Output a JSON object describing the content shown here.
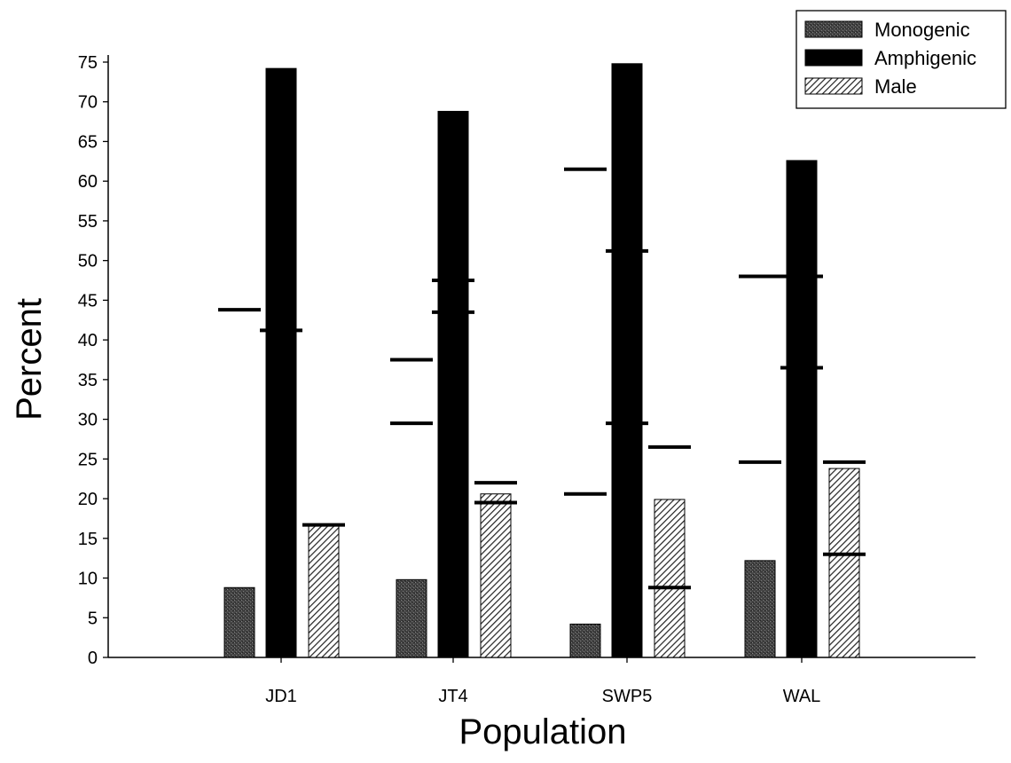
{
  "chart_data": {
    "type": "bar",
    "xlabel": "Population",
    "ylabel": "Percent",
    "categories": [
      "JD1",
      "JT4",
      "SWP5",
      "WAL"
    ],
    "ylim": [
      0,
      76
    ],
    "yticks": [
      0,
      5,
      10,
      15,
      20,
      25,
      30,
      35,
      40,
      45,
      50,
      55,
      60,
      65,
      70,
      75
    ],
    "grid": false,
    "legend_position": "top-right",
    "series": [
      {
        "name": "Monogenic",
        "pattern": "stipple",
        "color": "#3a3a3a",
        "values": [
          8.8,
          9.8,
          4.2,
          12.2
        ]
      },
      {
        "name": "Amphigenic",
        "pattern": "solid",
        "color": "#000000",
        "values": [
          74.2,
          68.8,
          74.8,
          62.6
        ]
      },
      {
        "name": "Male",
        "pattern": "hatch",
        "color": "#555555",
        "values": [
          16.7,
          20.6,
          19.9,
          23.8
        ]
      }
    ],
    "range_markers": [
      {
        "category": "JD1",
        "series": "Monogenic",
        "values": [
          43.8
        ]
      },
      {
        "category": "JD1",
        "series": "Amphigenic",
        "values": [
          41.2
        ]
      },
      {
        "category": "JD1",
        "series": "Male",
        "values": [
          16.7
        ]
      },
      {
        "category": "JT4",
        "series": "Monogenic",
        "values": [
          37.5,
          29.5
        ]
      },
      {
        "category": "JT4",
        "series": "Amphigenic",
        "values": [
          47.5,
          43.5
        ]
      },
      {
        "category": "JT4",
        "series": "Male",
        "values": [
          22.0,
          19.5
        ]
      },
      {
        "category": "SWP5",
        "series": "Monogenic",
        "values": [
          61.5,
          20.6
        ]
      },
      {
        "category": "SWP5",
        "series": "Amphigenic",
        "values": [
          51.2,
          29.5
        ]
      },
      {
        "category": "SWP5",
        "series": "Male",
        "values": [
          26.5,
          8.8
        ]
      },
      {
        "category": "WAL",
        "series": "Monogenic",
        "values": [
          48.0,
          24.6
        ]
      },
      {
        "category": "WAL",
        "series": "Amphigenic",
        "values": [
          48.0,
          36.5
        ]
      },
      {
        "category": "WAL",
        "series": "Male",
        "values": [
          24.6,
          13.0
        ]
      }
    ]
  }
}
